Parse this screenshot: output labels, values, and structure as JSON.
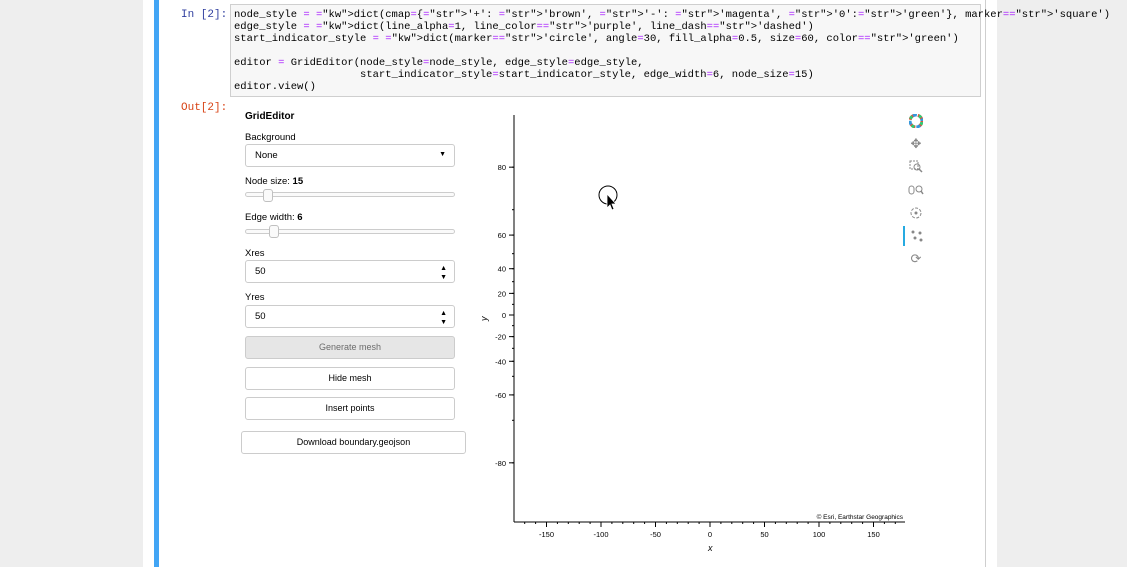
{
  "notebook": {
    "in_prompt": "In [2]:",
    "out_prompt": "Out[2]:",
    "code_lines": [
      "node_style = dict(cmap={'+': 'brown', '-': 'magenta', '0':'green'}, marker='square')",
      "edge_style = dict(line_alpha=1, line_color='purple', line_dash='dashed')",
      "start_indicator_style = dict(marker='circle', angle=30, fill_alpha=0.5, size=60, color='green')",
      "",
      "editor = GridEditor(node_style=node_style, edge_style=edge_style,",
      "                    start_indicator_style=start_indicator_style, edge_width=6, node_size=15)",
      "editor.view()"
    ]
  },
  "widget": {
    "title": "GridEditor",
    "background_label": "Background",
    "background_value": "None",
    "node_size_label": "Node size:",
    "node_size_value": "15",
    "node_size_fraction": 0.07,
    "edge_width_label": "Edge width:",
    "edge_width_value": "6",
    "edge_width_fraction": 0.1,
    "xres_label": "Xres",
    "xres_value": "50",
    "yres_label": "Yres",
    "yres_value": "50",
    "generate_mesh": "Generate mesh",
    "hide_mesh": "Hide mesh",
    "insert_points": "Insert points",
    "download_boundary": "Download boundary.geojson"
  },
  "plot": {
    "attribution": "© Esri, Earthstar Geographics",
    "xlabel": "x",
    "ylabel": "y",
    "x_ticks": [
      "-150",
      "-100",
      "-50",
      "0",
      "50",
      "100",
      "150"
    ],
    "y_ticks": [
      "80",
      "60",
      "40",
      "20",
      "0",
      "-20",
      "-40",
      "-60",
      "-80"
    ],
    "toolbar_icons": [
      "bokeh-logo-icon",
      "pan-icon",
      "box-zoom-icon",
      "wheel-zoom-icon",
      "rotate-icon",
      "point-draw-icon",
      "reset-icon"
    ]
  }
}
